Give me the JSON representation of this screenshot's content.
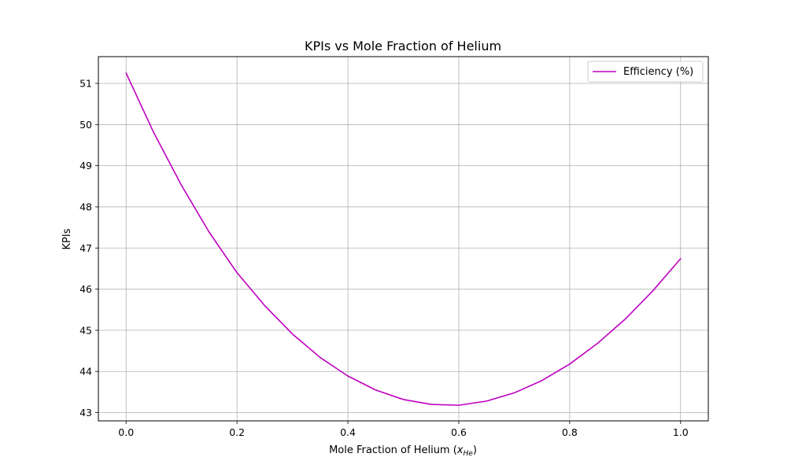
{
  "chart_data": {
    "type": "line",
    "title": "KPIs vs Mole Fraction of Helium",
    "xlabel": "Mole Fraction of Helium (",
    "xlabel_math": "x",
    "xlabel_sub": "He",
    "xlabel_close": ")",
    "ylabel": "KPIs",
    "xlim": [
      -0.05,
      1.05
    ],
    "ylim": [
      42.8,
      51.65
    ],
    "grid": true,
    "legend_position": "top-right",
    "x_ticks": [
      0.0,
      0.2,
      0.4,
      0.6,
      0.8,
      1.0
    ],
    "x_tick_labels": [
      "0.0",
      "0.2",
      "0.4",
      "0.6",
      "0.8",
      "1.0"
    ],
    "y_ticks": [
      43,
      44,
      45,
      46,
      47,
      48,
      49,
      50,
      51
    ],
    "y_tick_labels": [
      "43",
      "44",
      "45",
      "46",
      "47",
      "48",
      "49",
      "50",
      "51"
    ],
    "series": [
      {
        "name": "Efficiency (%)",
        "color": "#bf00bf",
        "x": [
          0.0,
          0.05,
          0.1,
          0.15,
          0.2,
          0.25,
          0.3,
          0.35,
          0.4,
          0.45,
          0.5,
          0.55,
          0.6,
          0.65,
          0.7,
          0.75,
          0.8,
          0.85,
          0.9,
          0.95,
          1.0
        ],
        "y": [
          51.25,
          49.8,
          48.52,
          47.38,
          46.4,
          45.6,
          44.91,
          44.34,
          43.89,
          43.55,
          43.32,
          43.2,
          43.18,
          43.28,
          43.48,
          43.78,
          44.18,
          44.68,
          45.27,
          45.96,
          46.74
        ]
      }
    ]
  }
}
